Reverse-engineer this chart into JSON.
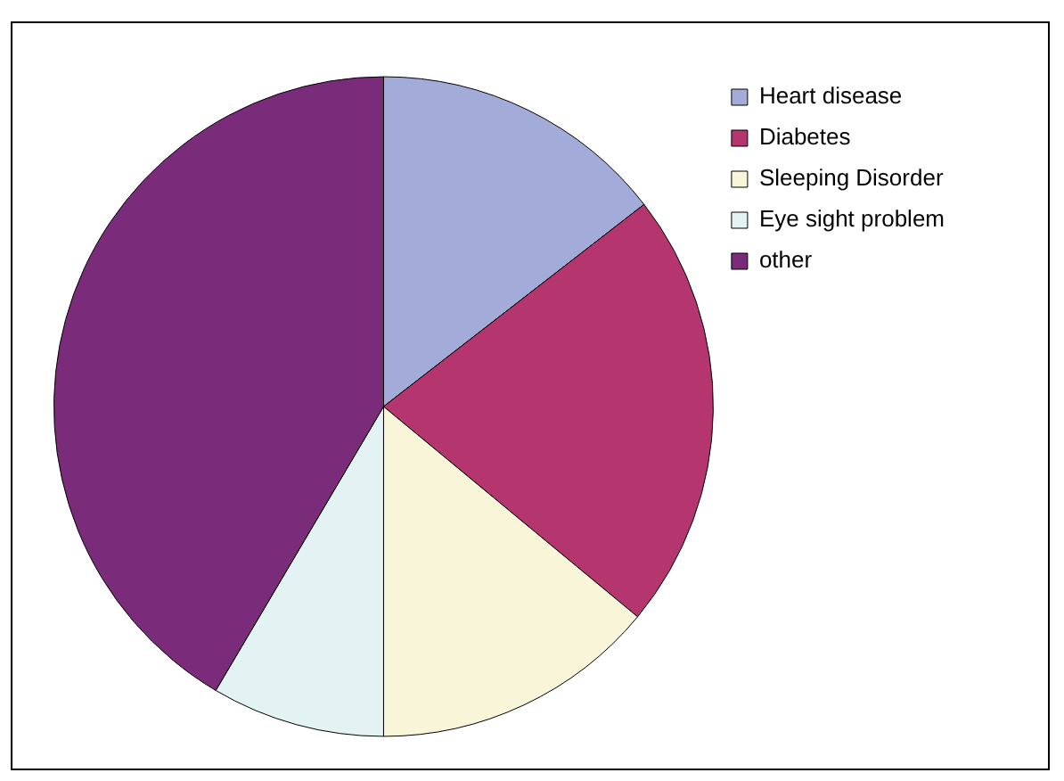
{
  "chart_data": {
    "type": "pie",
    "categories": [
      "Heart disease",
      "Diabetes",
      "Sleeping Disorder",
      "Eye sight problem",
      "other"
    ],
    "values": [
      14.5,
      21.5,
      14,
      8.5,
      41.5
    ],
    "colors": [
      "#a3acd8",
      "#b5366f",
      "#f8f5d8",
      "#e3f2f2",
      "#7a2c7a"
    ],
    "legend": "right"
  }
}
